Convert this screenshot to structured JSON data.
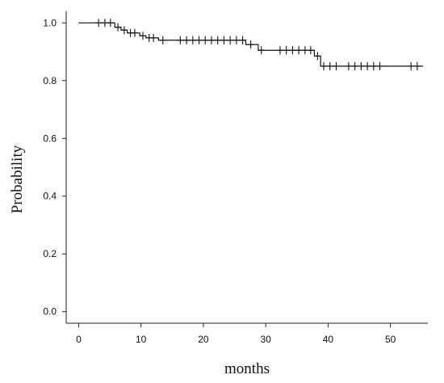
{
  "chart_data": {
    "type": "line",
    "subtype": "kaplan-meier step",
    "xlabel": "months",
    "ylabel": "Probability",
    "xlim": [
      -2,
      56
    ],
    "ylim": [
      -0.04,
      1.04
    ],
    "xticks": [
      0,
      10,
      20,
      30,
      40,
      50
    ],
    "yticks": [
      0.0,
      0.2,
      0.4,
      0.6,
      0.8,
      1.0
    ],
    "ytick_labels": [
      "0.0",
      "0.2",
      "0.4",
      "0.6",
      "0.8",
      "1.0"
    ],
    "grid": false,
    "legend": "none",
    "line_color": "#111111",
    "series": [
      {
        "steps": [
          {
            "x": 0,
            "y": 1.0
          },
          {
            "x": 5.8,
            "y": 0.985
          },
          {
            "x": 6.8,
            "y": 0.975
          },
          {
            "x": 7.8,
            "y": 0.965
          },
          {
            "x": 9.8,
            "y": 0.955
          },
          {
            "x": 10.8,
            "y": 0.948
          },
          {
            "x": 12.8,
            "y": 0.94
          },
          {
            "x": 26.8,
            "y": 0.925
          },
          {
            "x": 28.8,
            "y": 0.905
          },
          {
            "x": 37.8,
            "y": 0.885
          },
          {
            "x": 38.8,
            "y": 0.85
          },
          {
            "x": 55.2,
            "y": 0.85
          }
        ],
        "censored": [
          {
            "x": 3.2,
            "y": 1.0
          },
          {
            "x": 4.2,
            "y": 1.0
          },
          {
            "x": 5.1,
            "y": 1.0
          },
          {
            "x": 6.3,
            "y": 0.985
          },
          {
            "x": 7.3,
            "y": 0.975
          },
          {
            "x": 8.3,
            "y": 0.965
          },
          {
            "x": 9.0,
            "y": 0.965
          },
          {
            "x": 10.3,
            "y": 0.955
          },
          {
            "x": 11.3,
            "y": 0.948
          },
          {
            "x": 12.0,
            "y": 0.948
          },
          {
            "x": 13.5,
            "y": 0.94
          },
          {
            "x": 16.3,
            "y": 0.94
          },
          {
            "x": 17.3,
            "y": 0.94
          },
          {
            "x": 18.3,
            "y": 0.94
          },
          {
            "x": 19.3,
            "y": 0.94
          },
          {
            "x": 20.3,
            "y": 0.94
          },
          {
            "x": 21.3,
            "y": 0.94
          },
          {
            "x": 22.3,
            "y": 0.94
          },
          {
            "x": 23.3,
            "y": 0.94
          },
          {
            "x": 24.3,
            "y": 0.94
          },
          {
            "x": 25.3,
            "y": 0.94
          },
          {
            "x": 26.3,
            "y": 0.94
          },
          {
            "x": 27.6,
            "y": 0.925
          },
          {
            "x": 29.3,
            "y": 0.905
          },
          {
            "x": 32.3,
            "y": 0.905
          },
          {
            "x": 33.3,
            "y": 0.905
          },
          {
            "x": 34.3,
            "y": 0.905
          },
          {
            "x": 35.3,
            "y": 0.905
          },
          {
            "x": 36.3,
            "y": 0.905
          },
          {
            "x": 37.2,
            "y": 0.905
          },
          {
            "x": 38.3,
            "y": 0.885
          },
          {
            "x": 39.3,
            "y": 0.85
          },
          {
            "x": 40.3,
            "y": 0.85
          },
          {
            "x": 41.3,
            "y": 0.85
          },
          {
            "x": 43.3,
            "y": 0.85
          },
          {
            "x": 44.3,
            "y": 0.85
          },
          {
            "x": 45.3,
            "y": 0.85
          },
          {
            "x": 46.3,
            "y": 0.85
          },
          {
            "x": 47.3,
            "y": 0.85
          },
          {
            "x": 48.3,
            "y": 0.85
          },
          {
            "x": 53.3,
            "y": 0.85
          },
          {
            "x": 54.3,
            "y": 0.85
          }
        ]
      }
    ]
  }
}
